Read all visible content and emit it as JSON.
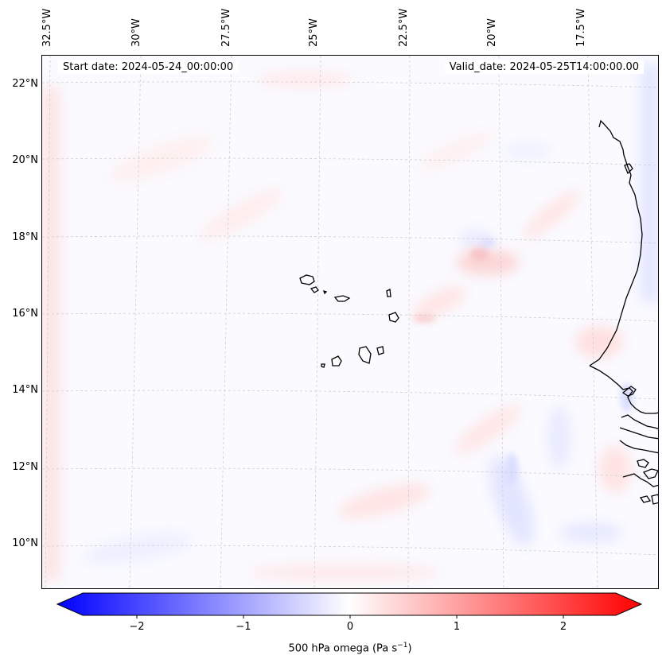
{
  "map": {
    "start_date": "Start date: 2024-05-24_00:00:00",
    "valid_date": "Valid_date: 2024-05-25T14:00:00.00",
    "lon_labels": [
      "32.5°W",
      "30°W",
      "27.5°W",
      "25°W",
      "22.5°W",
      "20°W",
      "17.5°W"
    ],
    "lat_labels": [
      "22°N",
      "20°N",
      "18°N",
      "16°N",
      "14°N",
      "12°N",
      "10°N"
    ],
    "field": "500 hPa omega",
    "region": "Cabo Verde and West African coast",
    "colors": {
      "min": "#0000ff",
      "mid": "#ffffff",
      "max": "#ff0000",
      "coast": "#000000",
      "grid": "#cccccc"
    }
  },
  "colorbar": {
    "ticks": [
      "−2",
      "−1",
      "0",
      "1",
      "2"
    ],
    "tick_values": [
      -2,
      -1,
      0,
      1,
      2
    ],
    "range": [
      -2.5,
      2.5
    ],
    "label_main": "500 hPa omega (Pa s",
    "label_sup": "−1",
    "label_end": ")"
  }
}
